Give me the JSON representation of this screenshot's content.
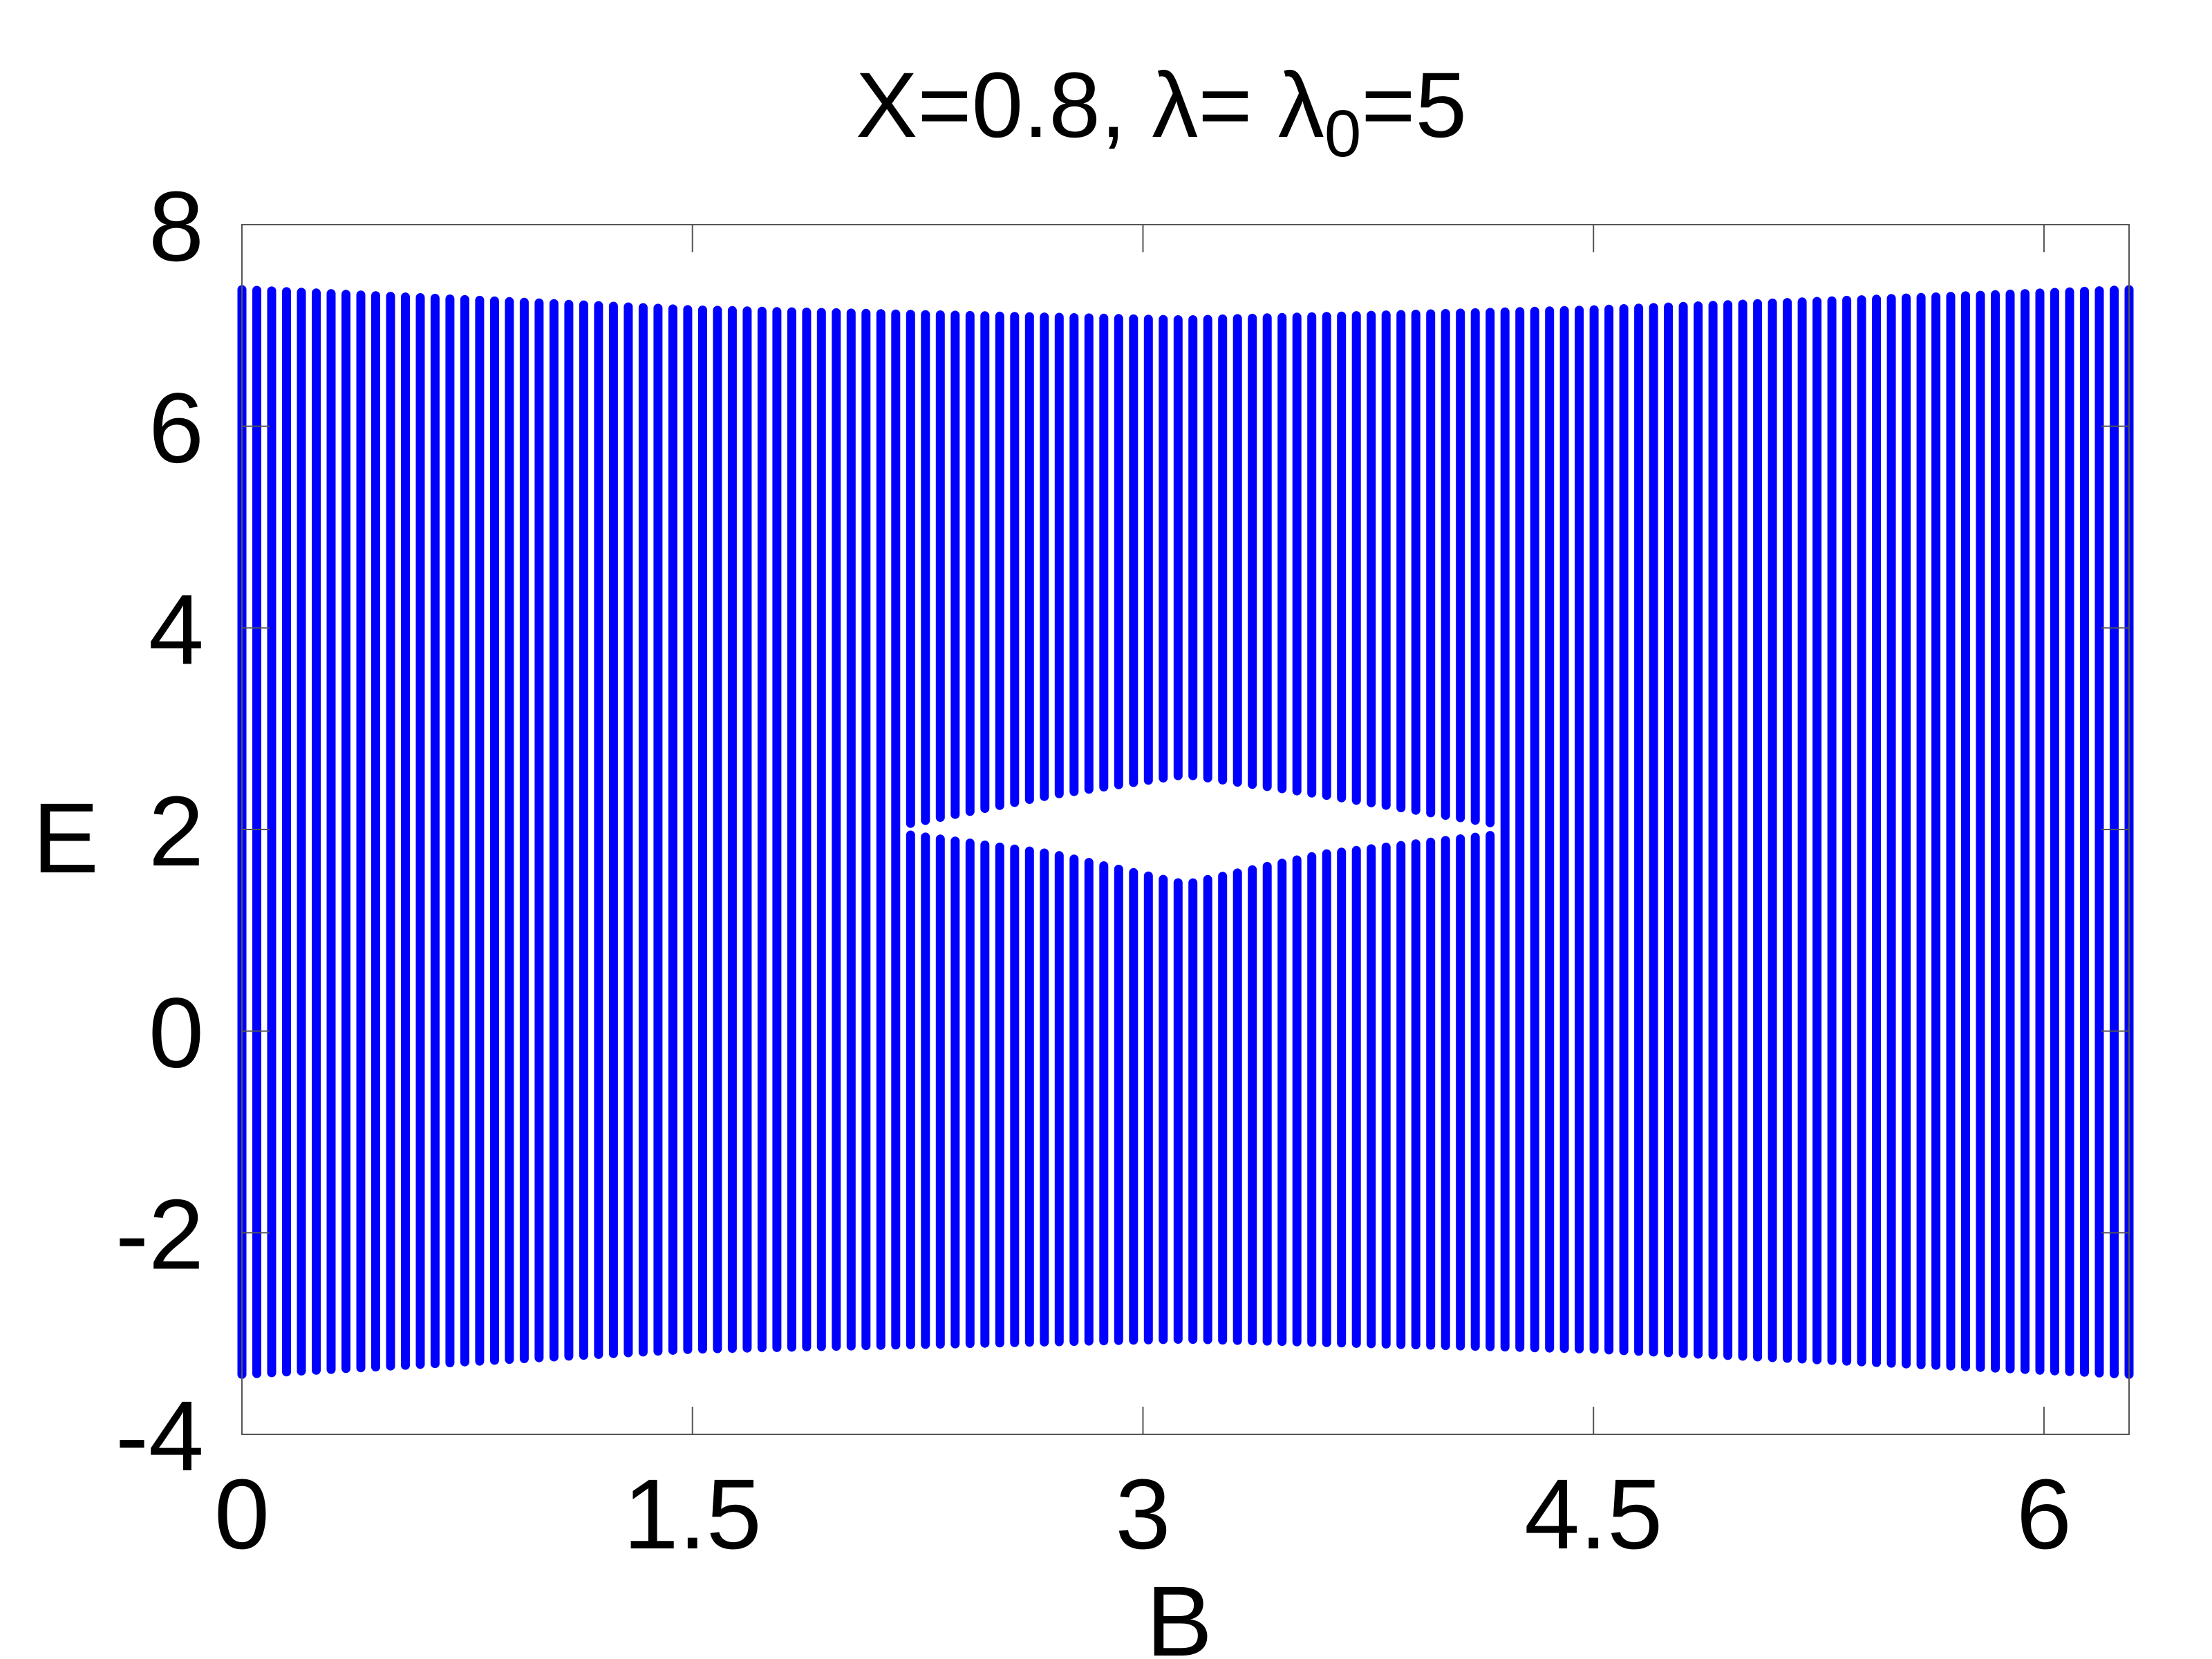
{
  "chart_data": {
    "type": "scatter",
    "title": "X=0.8, λ= λ",
    "title_sub": "0",
    "title_tail": "=5",
    "xlabel": "B",
    "ylabel": "E",
    "xlim": [
      0,
      6.2832
    ],
    "ylim": [
      -4,
      8
    ],
    "xticks": [
      0,
      1.5,
      3,
      4.5,
      6
    ],
    "xtick_labels": [
      "0",
      "1.5",
      "3",
      "4.5",
      "6"
    ],
    "yticks": [
      -4,
      -2,
      0,
      2,
      4,
      6,
      8
    ],
    "ytick_labels": [
      "-4",
      "-2",
      "0",
      "2",
      "4",
      "6",
      "8"
    ],
    "grid": false,
    "legend": "none",
    "marker_color": "#0000ff",
    "series": [
      {
        "values": {
          "B_samples": 128,
          "B_range": [
            0,
            6.2832
          ],
          "E_max": {
            "B": [
              0,
              1.5,
              3.1416,
              4.5,
              6.2832
            ],
            "E": [
              7.4,
              7.2,
              7.1,
              7.2,
              7.4
            ]
          },
          "E_min": {
            "B": [
              0,
              1.5,
              3.1416,
              4.5,
              6.2832
            ],
            "E": [
              -3.45,
              -3.2,
              -3.1,
              -3.2,
              -3.45
            ]
          },
          "gap_upper_edge": {
            "B": [
              2.2,
              2.7,
              3.1416,
              3.6,
              4.2
            ],
            "E": [
              2.0,
              2.3,
              2.5,
              2.3,
              2.0
            ]
          },
          "gap_lower_edge": {
            "B": [
              2.2,
              2.7,
              3.1416,
              3.6,
              4.2
            ],
            "E": [
              2.0,
              1.8,
              1.5,
              1.8,
              2.0
            ]
          }
        }
      }
    ]
  }
}
